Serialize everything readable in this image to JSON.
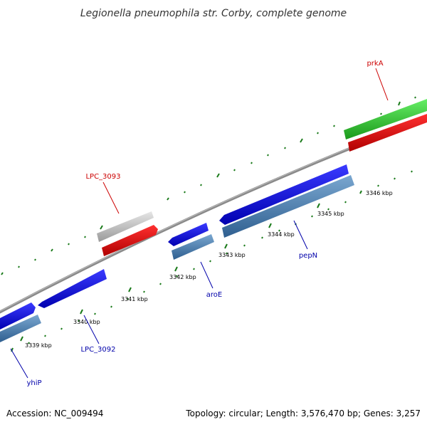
{
  "title": "Legionella pneumophila str. Corby, complete genome",
  "footer": {
    "accession": "Accession: NC_009494",
    "summary": "Topology: circular; Length: 3,576,470 bp; Genes: 3,257"
  },
  "colors": {
    "backbone": "#888888",
    "tick": "#1a7a1a",
    "forward_cds": "#0000ee",
    "reverse_cds": "#4a7fb0",
    "red_gene": "#ee0000",
    "grey_gene": "#c8c8c8",
    "green_gene": "#33cc33",
    "label_forward": "#0000aa",
    "label_reverse": "#cc0000"
  },
  "ticks": [
    {
      "label": "3339 kbp"
    },
    {
      "label": "3340 kbp"
    },
    {
      "label": "3341 kbp"
    },
    {
      "label": "3342 kbp"
    },
    {
      "label": "3343 kbp"
    },
    {
      "label": "3344 kbp"
    },
    {
      "label": "3345 kbp"
    },
    {
      "label": "3346 kbp"
    }
  ],
  "gene_labels": [
    {
      "name": "LPC_3093",
      "strand": "reverse"
    },
    {
      "name": "prkA",
      "strand": "reverse"
    },
    {
      "name": "yhiP",
      "strand": "forward"
    },
    {
      "name": "LPC_3092",
      "strand": "forward"
    },
    {
      "name": "aroE",
      "strand": "forward"
    },
    {
      "name": "pepN",
      "strand": "forward"
    }
  ]
}
